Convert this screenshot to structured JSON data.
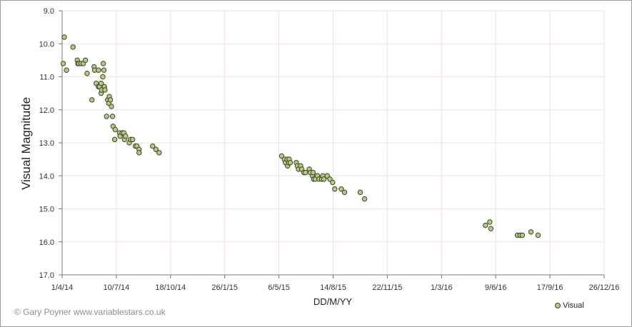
{
  "chart_data": {
    "type": "scatter",
    "xlabel": "DD/M/YY",
    "ylabel": "Visual Magnitude",
    "ylim": [
      17.0,
      9.0
    ],
    "y_inverted": true,
    "xlim": [
      "2014-04-01",
      "2016-12-26"
    ],
    "x_ticks": [
      "1/4/14",
      "10/7/14",
      "18/10/14",
      "26/1/15",
      "6/5/15",
      "14/8/15",
      "22/11/15",
      "1/3/16",
      "9/6/16",
      "17/9/16",
      "26/12/16"
    ],
    "y_ticks": [
      "9.0",
      "10.0",
      "11.0",
      "12.0",
      "13.0",
      "14.0",
      "15.0",
      "16.0",
      "17.0"
    ],
    "grid": true,
    "legend_position": "bottom-right",
    "series": [
      {
        "name": "Visual",
        "color": "#b7c98a",
        "edge_color": "#3a4a25",
        "points": [
          [
            "2014-04-03",
            10.6
          ],
          [
            "2014-04-05",
            9.8
          ],
          [
            "2014-04-09",
            10.8
          ],
          [
            "2014-04-21",
            10.1
          ],
          [
            "2014-04-29",
            10.5
          ],
          [
            "2014-04-30",
            10.6
          ],
          [
            "2014-05-02",
            10.6
          ],
          [
            "2014-05-06",
            10.6
          ],
          [
            "2014-05-10",
            10.6
          ],
          [
            "2014-05-14",
            10.5
          ],
          [
            "2014-05-17",
            10.9
          ],
          [
            "2014-05-26",
            11.7
          ],
          [
            "2014-05-30",
            10.7
          ],
          [
            "2014-05-31",
            10.8
          ],
          [
            "2014-06-03",
            11.2
          ],
          [
            "2014-06-07",
            10.8
          ],
          [
            "2014-06-07",
            11.3
          ],
          [
            "2014-06-09",
            11.3
          ],
          [
            "2014-06-12",
            11.2
          ],
          [
            "2014-06-12",
            11.5
          ],
          [
            "2014-06-13",
            11.4
          ],
          [
            "2014-06-15",
            11.0
          ],
          [
            "2014-06-16",
            10.6
          ],
          [
            "2014-06-17",
            10.8
          ],
          [
            "2014-06-18",
            11.3
          ],
          [
            "2014-06-19",
            11.4
          ],
          [
            "2014-06-22",
            12.2
          ],
          [
            "2014-06-24",
            11.7
          ],
          [
            "2014-06-26",
            11.8
          ],
          [
            "2014-06-27",
            11.6
          ],
          [
            "2014-06-29",
            11.7
          ],
          [
            "2014-07-01",
            11.9
          ],
          [
            "2014-07-03",
            12.2
          ],
          [
            "2014-07-04",
            12.5
          ],
          [
            "2014-07-07",
            12.9
          ],
          [
            "2014-07-08",
            12.6
          ],
          [
            "2014-07-16",
            12.7
          ],
          [
            "2014-07-17",
            12.8
          ],
          [
            "2014-07-21",
            12.7
          ],
          [
            "2014-07-24",
            12.7
          ],
          [
            "2014-07-25",
            12.9
          ],
          [
            "2014-07-27",
            12.8
          ],
          [
            "2014-08-03",
            13.0
          ],
          [
            "2014-08-05",
            12.9
          ],
          [
            "2014-08-09",
            12.9
          ],
          [
            "2014-08-14",
            13.1
          ],
          [
            "2014-08-17",
            13.1
          ],
          [
            "2014-08-21",
            13.2
          ],
          [
            "2014-08-21",
            13.3
          ],
          [
            "2014-09-15",
            13.1
          ],
          [
            "2014-09-21",
            13.2
          ],
          [
            "2014-09-27",
            13.3
          ],
          [
            "2015-05-11",
            13.4
          ],
          [
            "2015-05-16",
            13.5
          ],
          [
            "2015-05-18",
            13.6
          ],
          [
            "2015-05-21",
            13.5
          ],
          [
            "2015-05-22",
            13.7
          ],
          [
            "2015-05-24",
            13.6
          ],
          [
            "2015-05-25",
            13.5
          ],
          [
            "2015-05-27",
            13.6
          ],
          [
            "2015-06-07",
            13.6
          ],
          [
            "2015-06-09",
            13.7
          ],
          [
            "2015-06-11",
            13.8
          ],
          [
            "2015-06-15",
            13.7
          ],
          [
            "2015-06-17",
            13.8
          ],
          [
            "2015-06-21",
            13.9
          ],
          [
            "2015-06-24",
            13.9
          ],
          [
            "2015-07-01",
            13.8
          ],
          [
            "2015-07-03",
            13.9
          ],
          [
            "2015-07-07",
            14.0
          ],
          [
            "2015-07-08",
            13.9
          ],
          [
            "2015-07-09",
            14.1
          ],
          [
            "2015-07-12",
            14.1
          ],
          [
            "2015-07-16",
            14.0
          ],
          [
            "2015-07-19",
            14.1
          ],
          [
            "2015-07-24",
            14.1
          ],
          [
            "2015-07-26",
            14.0
          ],
          [
            "2015-07-28",
            14.1
          ],
          [
            "2015-08-03",
            14.0
          ],
          [
            "2015-08-08",
            14.1
          ],
          [
            "2015-08-13",
            14.2
          ],
          [
            "2015-08-17",
            14.4
          ],
          [
            "2015-08-29",
            14.4
          ],
          [
            "2015-09-04",
            14.5
          ],
          [
            "2015-10-03",
            14.5
          ],
          [
            "2015-10-11",
            14.7
          ],
          [
            "2016-05-21",
            15.5
          ],
          [
            "2016-05-29",
            15.4
          ],
          [
            "2016-05-31",
            15.6
          ],
          [
            "2016-07-19",
            15.8
          ],
          [
            "2016-07-24",
            15.8
          ],
          [
            "2016-07-28",
            15.8
          ],
          [
            "2016-08-13",
            15.7
          ],
          [
            "2016-08-26",
            15.8
          ]
        ]
      }
    ]
  },
  "credit": "© Gary Poyner  www.variablestars.co.uk"
}
